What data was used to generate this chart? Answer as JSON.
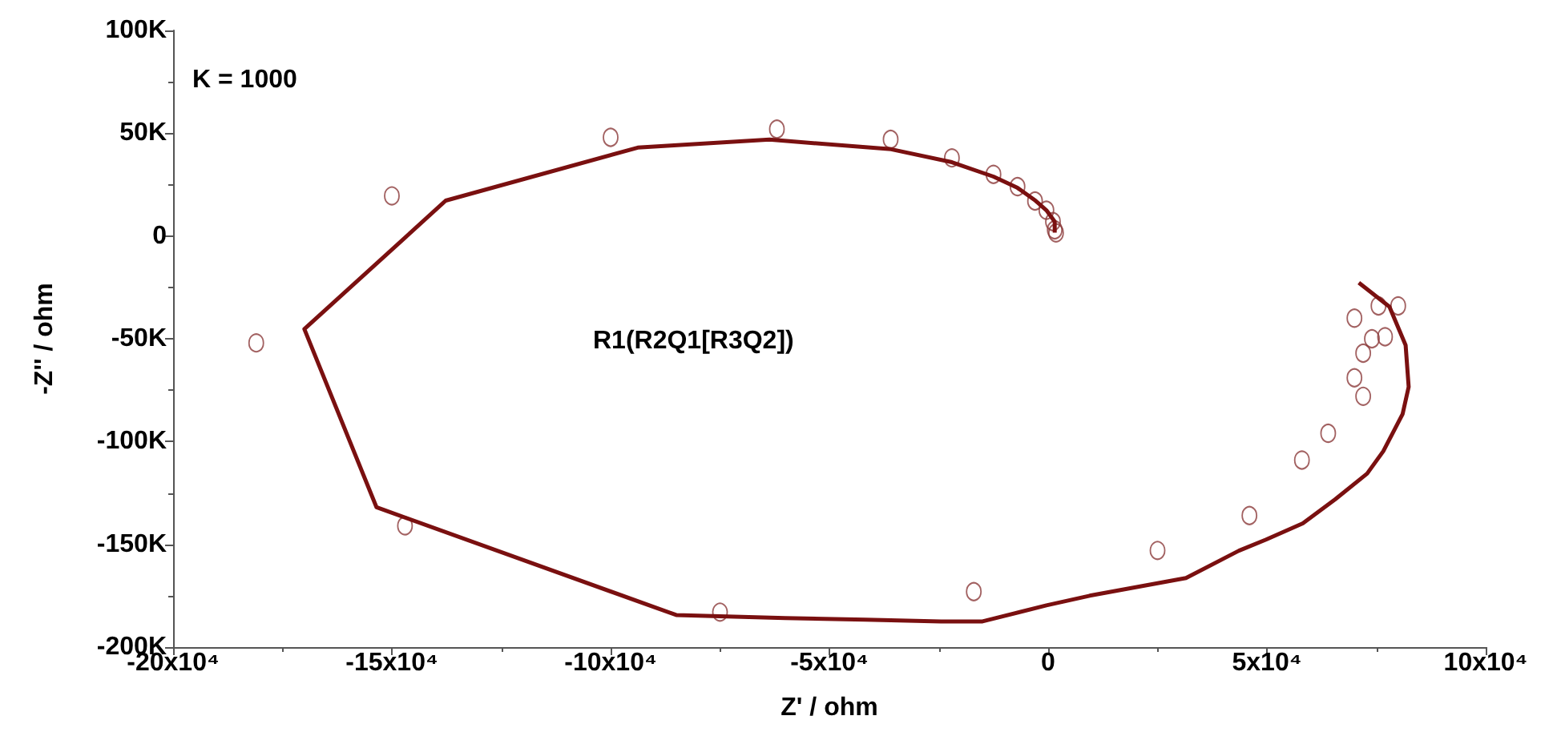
{
  "chart_data": {
    "type": "scatter",
    "xlabel": "Z' / ohm",
    "ylabel": "-Z'' / ohm",
    "annotations": [
      "K = 1000",
      "R1(R2Q1[R3Q2])"
    ],
    "xlim": [
      -200000,
      100000
    ],
    "xticks": [
      {
        "value": -200000,
        "label": "-20x10⁴"
      },
      {
        "value": -150000,
        "label": "-15x10⁴"
      },
      {
        "value": -100000,
        "label": "-10x10⁴"
      },
      {
        "value": -50000,
        "label": "-5x10⁴"
      },
      {
        "value": 0,
        "label": "0"
      },
      {
        "value": 50000,
        "label": "5x10⁴"
      },
      {
        "value": 100000,
        "label": "10x10⁴"
      }
    ],
    "ylim": [
      -200000,
      100000
    ],
    "yticks": [
      {
        "value": -200000,
        "label": "-200K"
      },
      {
        "value": -150000,
        "label": "-150K"
      },
      {
        "value": -100000,
        "label": "-100K"
      },
      {
        "value": -50000,
        "label": "-50K"
      },
      {
        "value": 0,
        "label": "0"
      },
      {
        "value": 50000,
        "label": "50K"
      },
      {
        "value": 100000,
        "label": "100K"
      }
    ],
    "grid": false,
    "series": [
      {
        "marker": "circle",
        "color": "#8b3a3a",
        "x": [
          -181000,
          -147000,
          -150000,
          -75000,
          -100000,
          -62000,
          -36000,
          -22000,
          -12500,
          -7000,
          -3000,
          -400,
          1100,
          1500,
          1800,
          -17000,
          25000,
          46000,
          58000,
          64000,
          72000,
          70000,
          72000,
          74000,
          77000,
          70000,
          75500,
          80000
        ],
        "values": [
          -52000,
          -141000,
          19500,
          -183000,
          48000,
          52000,
          47000,
          38000,
          30000,
          24000,
          17000,
          12500,
          7000,
          3000,
          1500,
          -173000,
          -153000,
          -136000,
          -109000,
          -96000,
          -78000,
          -69000,
          -57000,
          -50000,
          -49000,
          -40000,
          -34000,
          -34000
        ]
      },
      {
        "type": "line",
        "marker": "none",
        "line_style": "solid",
        "color": "#7a1010",
        "x": [
          71000,
          78000,
          81700,
          82400,
          81000,
          76600,
          72900,
          65600,
          58200,
          49800,
          43600,
          31500,
          9500,
          -400,
          -15000,
          -24500,
          -41800,
          -60100,
          -85000,
          -153500,
          -170000,
          -137700,
          -93800,
          -63700,
          -35900,
          -22000,
          -12500,
          -7000,
          -2900,
          -400,
          1500,
          1500
        ],
        "values": [
          -22700,
          -34400,
          -53100,
          -73400,
          -86700,
          -104700,
          -115600,
          -128100,
          -139800,
          -147700,
          -153100,
          -166400,
          -175000,
          -179700,
          -187500,
          -187500,
          -186700,
          -185900,
          -184400,
          -132000,
          -45300,
          17200,
          43000,
          46900,
          42200,
          35900,
          28900,
          23400,
          17200,
          12500,
          7000,
          1600
        ]
      }
    ]
  }
}
